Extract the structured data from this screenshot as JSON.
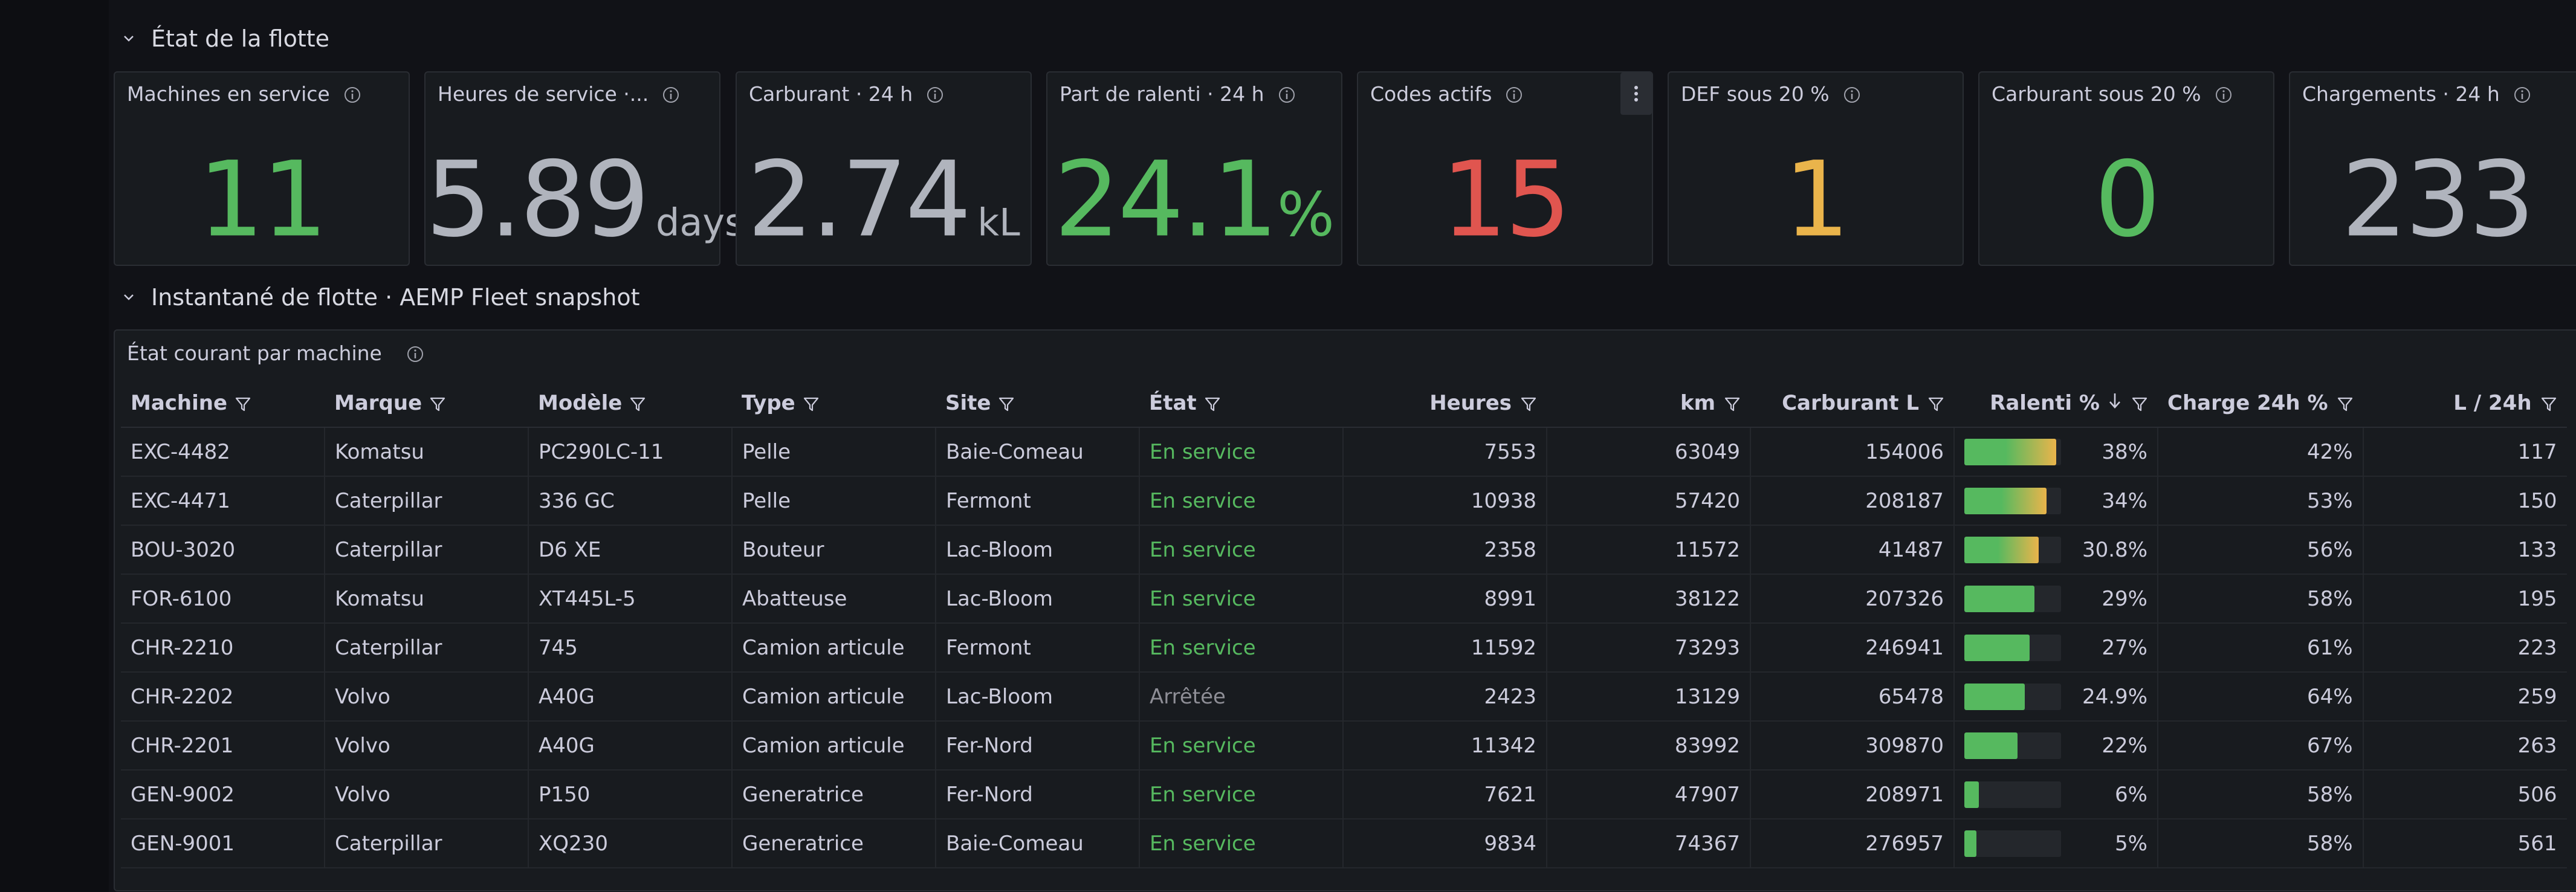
{
  "rows": [
    {
      "title": "État de la flotte"
    },
    {
      "title": "Instantané de flotte · AEMP Fleet snapshot"
    }
  ],
  "stats": [
    {
      "title": "Machines en service",
      "value": "11",
      "unit": "",
      "color": "#56b95f"
    },
    {
      "title": "Heures de service ·...",
      "value": "5.89",
      "unit": "days",
      "color": "#b0b4bd"
    },
    {
      "title": "Carburant · 24 h",
      "value": "2.74",
      "unit": "kL",
      "color": "#b0b4bd"
    },
    {
      "title": "Part de ralenti · 24 h",
      "value": "24.1",
      "unit": "%",
      "color": "#56b95f"
    },
    {
      "title": "Codes actifs",
      "value": "15",
      "unit": "",
      "color": "#e0554f"
    },
    {
      "title": "DEF sous 20 %",
      "value": "1",
      "unit": "",
      "color": "#eab44b"
    },
    {
      "title": "Carburant sous 20 %",
      "value": "0",
      "unit": "",
      "color": "#56b95f"
    },
    {
      "title": "Chargements · 24 h",
      "value": "233",
      "unit": "",
      "color": "#b0b4bd"
    }
  ],
  "table_panel": {
    "title": "État courant par machine",
    "columns": [
      "Machine",
      "Marque",
      "Modèle",
      "Type",
      "Site",
      "État",
      "Heures",
      "km",
      "Carburant L",
      "Ralenti %",
      "Charge 24h %",
      "L / 24h"
    ],
    "state_colors": {
      "En service": "#56b95f",
      "Arrêtée": "#8e8e96"
    },
    "rows": [
      {
        "machine": "EXC-4482",
        "marque": "Komatsu",
        "modele": "PC290LC-11",
        "type": "Pelle",
        "site": "Baie-Comeau",
        "etat": "En service",
        "heures": "7553",
        "km": "63049",
        "carburant": "154006",
        "ralenti": 38,
        "ralenti_label": "38%",
        "charge": "42%",
        "l24": "117"
      },
      {
        "machine": "EXC-4471",
        "marque": "Caterpillar",
        "modele": "336 GC",
        "type": "Pelle",
        "site": "Fermont",
        "etat": "En service",
        "heures": "10938",
        "km": "57420",
        "carburant": "208187",
        "ralenti": 34,
        "ralenti_label": "34%",
        "charge": "53%",
        "l24": "150"
      },
      {
        "machine": "BOU-3020",
        "marque": "Caterpillar",
        "modele": "D6 XE",
        "type": "Bouteur",
        "site": "Lac-Bloom",
        "etat": "En service",
        "heures": "2358",
        "km": "11572",
        "carburant": "41487",
        "ralenti": 30.8,
        "ralenti_label": "30.8%",
        "charge": "56%",
        "l24": "133"
      },
      {
        "machine": "FOR-6100",
        "marque": "Komatsu",
        "modele": "XT445L-5",
        "type": "Abatteuse",
        "site": "Lac-Bloom",
        "etat": "En service",
        "heures": "8991",
        "km": "38122",
        "carburant": "207326",
        "ralenti": 29,
        "ralenti_label": "29%",
        "charge": "58%",
        "l24": "195"
      },
      {
        "machine": "CHR-2210",
        "marque": "Caterpillar",
        "modele": "745",
        "type": "Camion articule",
        "site": "Fermont",
        "etat": "En service",
        "heures": "11592",
        "km": "73293",
        "carburant": "246941",
        "ralenti": 27,
        "ralenti_label": "27%",
        "charge": "61%",
        "l24": "223"
      },
      {
        "machine": "CHR-2202",
        "marque": "Volvo",
        "modele": "A40G",
        "type": "Camion articule",
        "site": "Lac-Bloom",
        "etat": "Arrêtée",
        "heures": "2423",
        "km": "13129",
        "carburant": "65478",
        "ralenti": 24.9,
        "ralenti_label": "24.9%",
        "charge": "64%",
        "l24": "259"
      },
      {
        "machine": "CHR-2201",
        "marque": "Volvo",
        "modele": "A40G",
        "type": "Camion articule",
        "site": "Fer-Nord",
        "etat": "En service",
        "heures": "11342",
        "km": "83992",
        "carburant": "309870",
        "ralenti": 22,
        "ralenti_label": "22%",
        "charge": "67%",
        "l24": "263"
      },
      {
        "machine": "GEN-9002",
        "marque": "Volvo",
        "modele": "P150",
        "type": "Generatrice",
        "site": "Fer-Nord",
        "etat": "En service",
        "heures": "7621",
        "km": "47907",
        "carburant": "208971",
        "ralenti": 6,
        "ralenti_label": "6%",
        "charge": "58%",
        "l24": "506"
      },
      {
        "machine": "GEN-9001",
        "marque": "Caterpillar",
        "modele": "XQ230",
        "type": "Generatrice",
        "site": "Baie-Comeau",
        "etat": "En service",
        "heures": "9834",
        "km": "74367",
        "carburant": "276957",
        "ralenti": 5,
        "ralenti_label": "5%",
        "charge": "58%",
        "l24": "561"
      }
    ]
  },
  "icons": {
    "row_toggle": "chevron-down-icon",
    "info": "info-icon",
    "filter": "filter-icon",
    "sort": "sort-desc-icon",
    "menu": "kebab-menu-icon"
  }
}
